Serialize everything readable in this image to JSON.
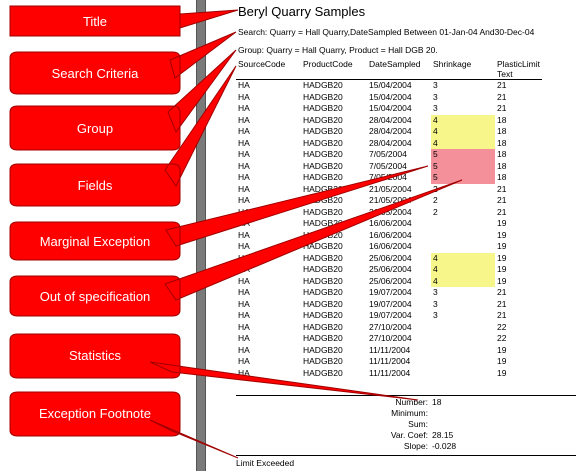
{
  "report": {
    "title": "Beryl Quarry Samples",
    "search": "Search: Quarry = Hall Quarry,DateSampled Between 01-Jan-04 And30-Dec-04",
    "group": "Group: Quarry = Hall Quarry, Product = Hall DGB 20.",
    "columns": [
      "SourceCode",
      "ProductCode",
      "DateSampled",
      "Shrinkage",
      "PlasticLimitText"
    ],
    "rows": [
      [
        "HA",
        "HADGB20",
        "15/04/2004",
        "3",
        "21",
        ""
      ],
      [
        "HA",
        "HADGB20",
        "15/04/2004",
        "3",
        "21",
        ""
      ],
      [
        "HA",
        "HADGB20",
        "15/04/2004",
        "3",
        "21",
        ""
      ],
      [
        "HA",
        "HADGB20",
        "28/04/2004",
        "4",
        "18",
        "marginal"
      ],
      [
        "HA",
        "HADGB20",
        "28/04/2004",
        "4",
        "18",
        "marginal"
      ],
      [
        "HA",
        "HADGB20",
        "28/04/2004",
        "4",
        "18",
        "marginal"
      ],
      [
        "HA",
        "HADGB20",
        "7/05/2004",
        "5",
        "18",
        "out"
      ],
      [
        "HA",
        "HADGB20",
        "7/05/2004",
        "5",
        "18",
        "out"
      ],
      [
        "HA",
        "HADGB20",
        "7/05/2004",
        "5",
        "18",
        "out"
      ],
      [
        "HA",
        "HADGB20",
        "21/05/2004",
        "2",
        "21",
        ""
      ],
      [
        "HA",
        "HADGB20",
        "21/05/2004",
        "2",
        "21",
        ""
      ],
      [
        "HA",
        "HADGB20",
        "21/05/2004",
        "2",
        "21",
        ""
      ],
      [
        "HA",
        "HADGB20",
        "16/06/2004",
        "",
        "19",
        ""
      ],
      [
        "HA",
        "HADGB20",
        "16/06/2004",
        "",
        "19",
        ""
      ],
      [
        "HA",
        "HADGB20",
        "16/06/2004",
        "",
        "19",
        ""
      ],
      [
        "HA",
        "HADGB20",
        "25/06/2004",
        "4",
        "19",
        "marginal"
      ],
      [
        "HA",
        "HADGB20",
        "25/06/2004",
        "4",
        "19",
        "marginal"
      ],
      [
        "HA",
        "HADGB20",
        "25/06/2004",
        "4",
        "19",
        "marginal"
      ],
      [
        "HA",
        "HADGB20",
        "19/07/2004",
        "3",
        "21",
        ""
      ],
      [
        "HA",
        "HADGB20",
        "19/07/2004",
        "3",
        "21",
        ""
      ],
      [
        "HA",
        "HADGB20",
        "19/07/2004",
        "3",
        "21",
        ""
      ],
      [
        "HA",
        "HADGB20",
        "27/10/2004",
        "",
        "22",
        ""
      ],
      [
        "HA",
        "HADGB20",
        "27/10/2004",
        "",
        "22",
        ""
      ],
      [
        "HA",
        "HADGB20",
        "11/11/2004",
        "",
        "19",
        ""
      ],
      [
        "HA",
        "HADGB20",
        "11/11/2004",
        "",
        "19",
        ""
      ],
      [
        "HA",
        "HADGB20",
        "11/11/2004",
        "",
        "19",
        ""
      ]
    ],
    "stats": [
      {
        "label": "Number:",
        "value": "18"
      },
      {
        "label": "Minimum:",
        "value": ""
      },
      {
        "label": "Sum:",
        "value": ""
      },
      {
        "label": "Var. Coef:",
        "value": "28.15"
      },
      {
        "label": "Slope:",
        "value": "-0.028"
      }
    ],
    "footnote": "Limit Exceeded"
  },
  "callouts": [
    {
      "id": "title",
      "text": "Title"
    },
    {
      "id": "search",
      "text": "Search Criteria"
    },
    {
      "id": "group",
      "text": "Group"
    },
    {
      "id": "fields",
      "text": "Fields"
    },
    {
      "id": "marginal",
      "text": "Marginal Exception"
    },
    {
      "id": "outofspec",
      "text": "Out of specification"
    },
    {
      "id": "statistics",
      "text": "Statistics"
    },
    {
      "id": "footnote",
      "text": "Exception Footnote"
    }
  ],
  "colors": {
    "callout": "#ff0000",
    "marginal": "#f6f68a",
    "out": "#f3909a"
  }
}
